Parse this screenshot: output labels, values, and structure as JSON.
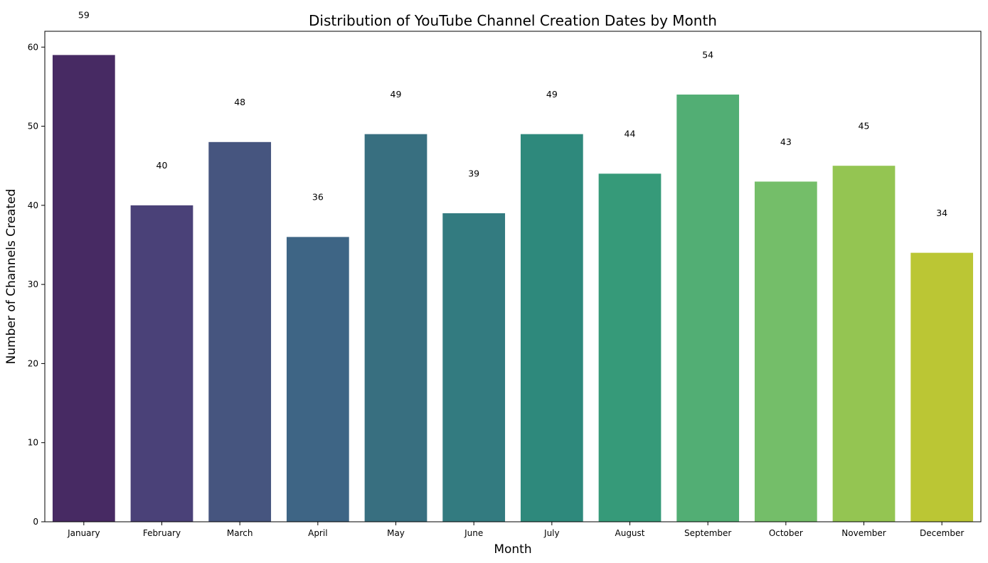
{
  "chart_data": {
    "type": "bar",
    "title": "Distribution of YouTube Channel Creation Dates by Month",
    "xlabel": "Month",
    "ylabel": "Number of Channels Created",
    "categories": [
      "January",
      "February",
      "March",
      "April",
      "May",
      "June",
      "July",
      "August",
      "September",
      "October",
      "November",
      "December"
    ],
    "values": [
      59,
      40,
      48,
      36,
      49,
      39,
      49,
      44,
      54,
      43,
      45,
      34
    ],
    "data_labels": [
      "59",
      "40",
      "48",
      "36",
      "49",
      "39",
      "49",
      "44",
      "54",
      "43",
      "45",
      "34"
    ],
    "ylim": [
      0,
      62
    ],
    "yticks": [
      0,
      10,
      20,
      30,
      40,
      50,
      60
    ],
    "ytick_labels": [
      "0",
      "10",
      "20",
      "30",
      "40",
      "50",
      "60"
    ],
    "grid": false,
    "colors": [
      "#472a63",
      "#4a4178",
      "#46557f",
      "#3e6585",
      "#386f80",
      "#337b80",
      "#2e897c",
      "#369a79",
      "#52ae74",
      "#74be69",
      "#94c552",
      "#bbc634"
    ]
  }
}
